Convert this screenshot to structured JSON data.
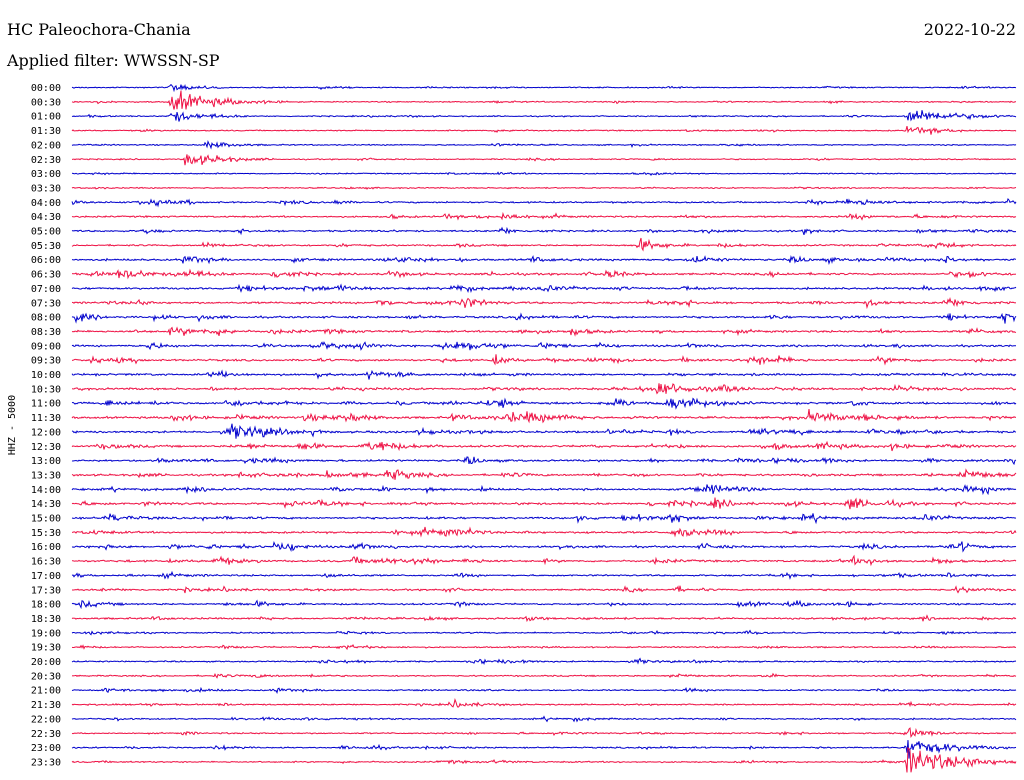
{
  "header": {
    "station": "HC Paleochora-Chania",
    "filter": "Applied filter: WWSSN-SP",
    "date": "2022-10-22"
  },
  "chart_data": {
    "type": "seismogram-helicorder",
    "ylabel": "HHZ - 5000",
    "colors": [
      "#0000cc",
      "#ee1144"
    ],
    "rows": [
      "00:00",
      "00:30",
      "01:00",
      "01:30",
      "02:00",
      "02:30",
      "03:00",
      "03:30",
      "04:00",
      "04:30",
      "05:00",
      "05:30",
      "06:00",
      "06:30",
      "07:00",
      "07:30",
      "08:00",
      "08:30",
      "09:00",
      "09:30",
      "10:00",
      "10:30",
      "11:00",
      "11:30",
      "12:00",
      "12:30",
      "13:00",
      "13:30",
      "14:00",
      "14:30",
      "15:00",
      "15:30",
      "16:00",
      "16:30",
      "17:00",
      "17:30",
      "18:00",
      "18:30",
      "19:00",
      "19:30",
      "20:00",
      "20:30",
      "21:00",
      "21:30",
      "22:00",
      "22:30",
      "23:00",
      "23:30"
    ]
  }
}
